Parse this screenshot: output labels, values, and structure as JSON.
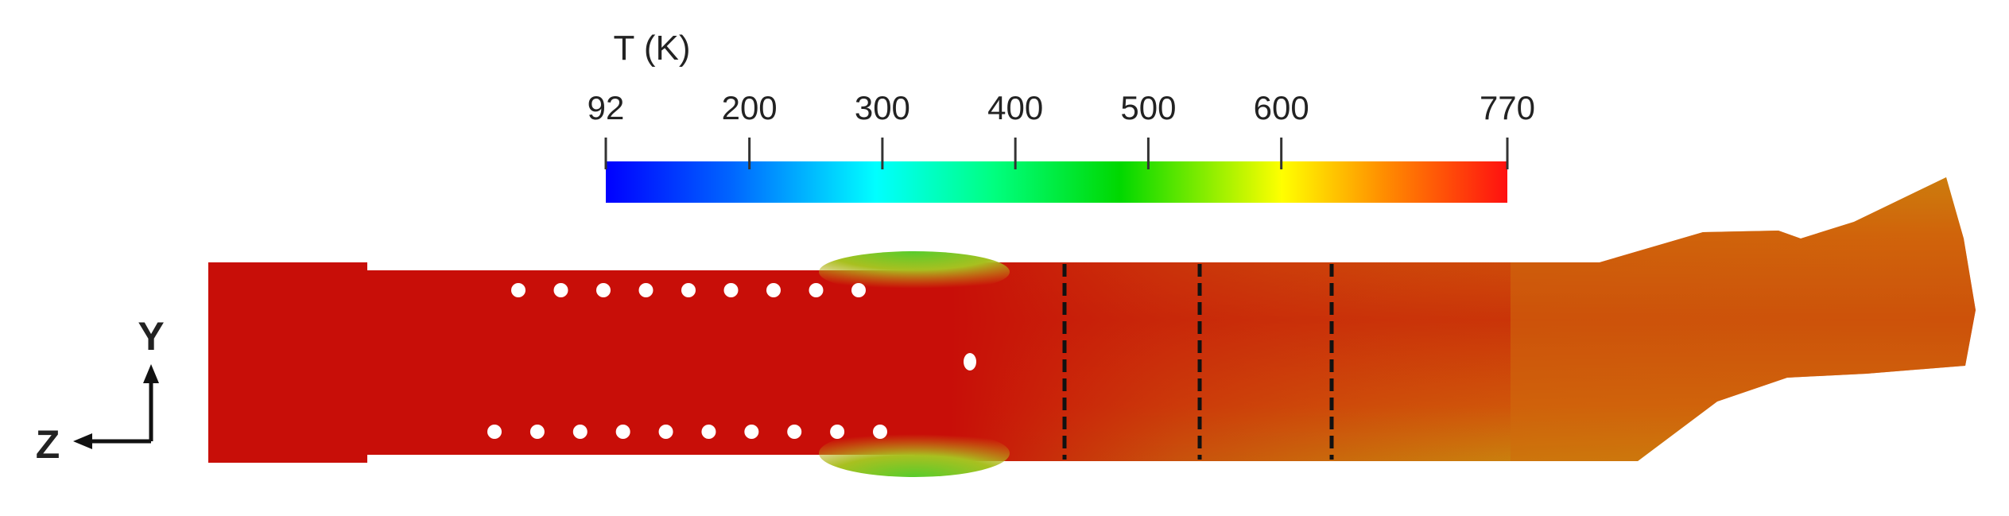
{
  "colorbar": {
    "title": "T (K)",
    "min": 92,
    "max": 770,
    "ticks": [
      {
        "value": 92,
        "label": "92"
      },
      {
        "value": 200,
        "label": "200"
      },
      {
        "value": 300,
        "label": "300"
      },
      {
        "value": 400,
        "label": "400"
      },
      {
        "value": 500,
        "label": "500"
      },
      {
        "value": 600,
        "label": "600"
      },
      {
        "value": 770,
        "label": "770"
      }
    ],
    "gradient_colors": [
      "#0000ff",
      "#0080ff",
      "#00ffff",
      "#00ff80",
      "#00e000",
      "#ffff00",
      "#ff8000",
      "#ff0000"
    ]
  },
  "axes": {
    "y_label": "Y",
    "z_label": "Z"
  },
  "field_colors": {
    "hot": "#c80e08",
    "warm": "#d4500a",
    "outlet": "#d0700c",
    "cool_band": "#c7a41a",
    "green_edge": "#70cc2a"
  },
  "holes": {
    "top_row_count": 9,
    "bottom_row_count": 10,
    "center_count": 1
  },
  "section_lines": {
    "count": 3,
    "style": "dashed",
    "color": "#111111"
  }
}
